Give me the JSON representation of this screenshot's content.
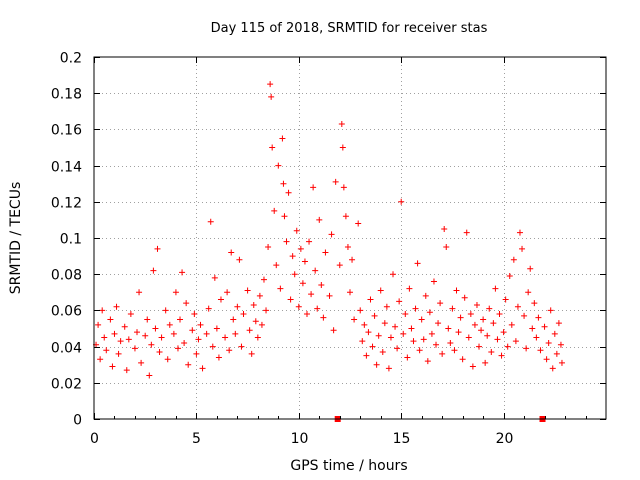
{
  "chart_data": {
    "type": "scatter",
    "title": "Day 115 of 2018, SRMTID for receiver stas",
    "xlabel": "GPS time / hours",
    "ylabel": "SRMTID / TECUs",
    "xlim": [
      0,
      25
    ],
    "ylim": [
      0,
      0.2
    ],
    "x_ticks": [
      0,
      5,
      10,
      15,
      20
    ],
    "x_tick_labels": [
      "0",
      "5",
      "10",
      "15",
      "20"
    ],
    "y_ticks": [
      0,
      0.02,
      0.04,
      0.06,
      0.08,
      0.1,
      0.12,
      0.14,
      0.16,
      0.18,
      0.2
    ],
    "y_tick_labels": [
      "0",
      "0.02",
      "0.04",
      "0.06",
      "0.08",
      "0.1",
      "0.12",
      "0.14",
      "0.16",
      "0.18",
      "0.2"
    ],
    "grid": true,
    "marker": "+",
    "color": "#ff0000",
    "zero_markers": [
      {
        "x": 11.9,
        "y": 0
      },
      {
        "x": 21.9,
        "y": 0
      }
    ],
    "series": [
      {
        "name": "SRMTID",
        "points": [
          [
            0.1,
            0.041
          ],
          [
            0.2,
            0.052
          ],
          [
            0.3,
            0.033
          ],
          [
            0.4,
            0.06
          ],
          [
            0.5,
            0.045
          ],
          [
            0.6,
            0.038
          ],
          [
            0.8,
            0.055
          ],
          [
            0.9,
            0.029
          ],
          [
            1.0,
            0.047
          ],
          [
            1.1,
            0.062
          ],
          [
            1.2,
            0.036
          ],
          [
            1.3,
            0.043
          ],
          [
            1.5,
            0.051
          ],
          [
            1.6,
            0.027
          ],
          [
            1.7,
            0.044
          ],
          [
            1.8,
            0.058
          ],
          [
            2.0,
            0.039
          ],
          [
            2.1,
            0.048
          ],
          [
            2.2,
            0.07
          ],
          [
            2.3,
            0.031
          ],
          [
            2.5,
            0.046
          ],
          [
            2.6,
            0.055
          ],
          [
            2.7,
            0.024
          ],
          [
            2.8,
            0.041
          ],
          [
            2.9,
            0.082
          ],
          [
            3.0,
            0.05
          ],
          [
            3.1,
            0.094
          ],
          [
            3.2,
            0.037
          ],
          [
            3.3,
            0.045
          ],
          [
            3.5,
            0.06
          ],
          [
            3.6,
            0.033
          ],
          [
            3.7,
            0.052
          ],
          [
            3.9,
            0.047
          ],
          [
            4.0,
            0.07
          ],
          [
            4.1,
            0.039
          ],
          [
            4.2,
            0.055
          ],
          [
            4.3,
            0.081
          ],
          [
            4.4,
            0.042
          ],
          [
            4.5,
            0.064
          ],
          [
            4.6,
            0.03
          ],
          [
            4.8,
            0.049
          ],
          [
            4.9,
            0.058
          ],
          [
            5.0,
            0.036
          ],
          [
            5.1,
            0.044
          ],
          [
            5.2,
            0.052
          ],
          [
            5.3,
            0.028
          ],
          [
            5.5,
            0.047
          ],
          [
            5.6,
            0.061
          ],
          [
            5.7,
            0.109
          ],
          [
            5.8,
            0.04
          ],
          [
            5.9,
            0.078
          ],
          [
            6.0,
            0.05
          ],
          [
            6.1,
            0.034
          ],
          [
            6.2,
            0.066
          ],
          [
            6.4,
            0.045
          ],
          [
            6.5,
            0.07
          ],
          [
            6.6,
            0.038
          ],
          [
            6.7,
            0.092
          ],
          [
            6.8,
            0.055
          ],
          [
            6.9,
            0.047
          ],
          [
            7.0,
            0.062
          ],
          [
            7.1,
            0.088
          ],
          [
            7.2,
            0.04
          ],
          [
            7.3,
            0.058
          ],
          [
            7.5,
            0.071
          ],
          [
            7.6,
            0.049
          ],
          [
            7.7,
            0.036
          ],
          [
            7.8,
            0.063
          ],
          [
            7.9,
            0.054
          ],
          [
            8.0,
            0.045
          ],
          [
            8.1,
            0.068
          ],
          [
            8.2,
            0.052
          ],
          [
            8.3,
            0.077
          ],
          [
            8.4,
            0.06
          ],
          [
            8.5,
            0.095
          ],
          [
            8.6,
            0.185
          ],
          [
            8.65,
            0.178
          ],
          [
            8.7,
            0.15
          ],
          [
            8.8,
            0.115
          ],
          [
            8.9,
            0.085
          ],
          [
            9.0,
            0.14
          ],
          [
            9.1,
            0.072
          ],
          [
            9.2,
            0.155
          ],
          [
            9.25,
            0.13
          ],
          [
            9.3,
            0.112
          ],
          [
            9.4,
            0.098
          ],
          [
            9.5,
            0.125
          ],
          [
            9.6,
            0.066
          ],
          [
            9.7,
            0.09
          ],
          [
            9.8,
            0.08
          ],
          [
            9.9,
            0.104
          ],
          [
            10.0,
            0.062
          ],
          [
            10.1,
            0.094
          ],
          [
            10.2,
            0.075
          ],
          [
            10.3,
            0.087
          ],
          [
            10.4,
            0.058
          ],
          [
            10.5,
            0.098
          ],
          [
            10.6,
            0.069
          ],
          [
            10.7,
            0.128
          ],
          [
            10.8,
            0.082
          ],
          [
            10.9,
            0.061
          ],
          [
            11.0,
            0.11
          ],
          [
            11.1,
            0.074
          ],
          [
            11.2,
            0.056
          ],
          [
            11.3,
            0.092
          ],
          [
            11.5,
            0.068
          ],
          [
            11.6,
            0.102
          ],
          [
            11.7,
            0.049
          ],
          [
            11.8,
            0.131
          ],
          [
            12.0,
            0.085
          ],
          [
            12.1,
            0.163
          ],
          [
            12.15,
            0.15
          ],
          [
            12.2,
            0.128
          ],
          [
            12.3,
            0.112
          ],
          [
            12.4,
            0.095
          ],
          [
            12.5,
            0.07
          ],
          [
            12.6,
            0.088
          ],
          [
            12.7,
            0.055
          ],
          [
            12.9,
            0.108
          ],
          [
            13.0,
            0.06
          ],
          [
            13.1,
            0.043
          ],
          [
            13.2,
            0.052
          ],
          [
            13.3,
            0.035
          ],
          [
            13.4,
            0.048
          ],
          [
            13.5,
            0.066
          ],
          [
            13.6,
            0.04
          ],
          [
            13.7,
            0.057
          ],
          [
            13.8,
            0.03
          ],
          [
            13.9,
            0.046
          ],
          [
            14.0,
            0.071
          ],
          [
            14.1,
            0.037
          ],
          [
            14.2,
            0.053
          ],
          [
            14.3,
            0.062
          ],
          [
            14.4,
            0.028
          ],
          [
            14.5,
            0.045
          ],
          [
            14.6,
            0.08
          ],
          [
            14.7,
            0.051
          ],
          [
            14.8,
            0.039
          ],
          [
            14.9,
            0.065
          ],
          [
            15.0,
            0.12
          ],
          [
            15.1,
            0.047
          ],
          [
            15.2,
            0.058
          ],
          [
            15.3,
            0.034
          ],
          [
            15.4,
            0.072
          ],
          [
            15.5,
            0.05
          ],
          [
            15.6,
            0.043
          ],
          [
            15.7,
            0.061
          ],
          [
            15.8,
            0.086
          ],
          [
            15.9,
            0.038
          ],
          [
            16.0,
            0.055
          ],
          [
            16.1,
            0.044
          ],
          [
            16.2,
            0.068
          ],
          [
            16.3,
            0.032
          ],
          [
            16.4,
            0.059
          ],
          [
            16.5,
            0.047
          ],
          [
            16.6,
            0.076
          ],
          [
            16.7,
            0.041
          ],
          [
            16.8,
            0.053
          ],
          [
            16.9,
            0.064
          ],
          [
            17.0,
            0.036
          ],
          [
            17.1,
            0.105
          ],
          [
            17.2,
            0.095
          ],
          [
            17.3,
            0.05
          ],
          [
            17.4,
            0.042
          ],
          [
            17.5,
            0.061
          ],
          [
            17.6,
            0.038
          ],
          [
            17.7,
            0.071
          ],
          [
            17.8,
            0.048
          ],
          [
            17.9,
            0.056
          ],
          [
            18.0,
            0.033
          ],
          [
            18.1,
            0.067
          ],
          [
            18.2,
            0.103
          ],
          [
            18.3,
            0.045
          ],
          [
            18.4,
            0.058
          ],
          [
            18.5,
            0.029
          ],
          [
            18.6,
            0.052
          ],
          [
            18.7,
            0.063
          ],
          [
            18.8,
            0.04
          ],
          [
            18.9,
            0.049
          ],
          [
            19.0,
            0.055
          ],
          [
            19.1,
            0.031
          ],
          [
            19.2,
            0.046
          ],
          [
            19.3,
            0.061
          ],
          [
            19.4,
            0.037
          ],
          [
            19.5,
            0.053
          ],
          [
            19.6,
            0.072
          ],
          [
            19.7,
            0.044
          ],
          [
            19.8,
            0.058
          ],
          [
            19.9,
            0.035
          ],
          [
            20.0,
            0.048
          ],
          [
            20.1,
            0.066
          ],
          [
            20.2,
            0.04
          ],
          [
            20.3,
            0.079
          ],
          [
            20.4,
            0.052
          ],
          [
            20.5,
            0.088
          ],
          [
            20.6,
            0.043
          ],
          [
            20.7,
            0.062
          ],
          [
            20.8,
            0.103
          ],
          [
            20.9,
            0.094
          ],
          [
            21.0,
            0.057
          ],
          [
            21.1,
            0.039
          ],
          [
            21.2,
            0.07
          ],
          [
            21.3,
            0.083
          ],
          [
            21.4,
            0.05
          ],
          [
            21.5,
            0.064
          ],
          [
            21.6,
            0.045
          ],
          [
            21.7,
            0.056
          ],
          [
            21.8,
            0.038
          ],
          [
            22.0,
            0.051
          ],
          [
            22.1,
            0.033
          ],
          [
            22.2,
            0.042
          ],
          [
            22.3,
            0.06
          ],
          [
            22.4,
            0.028
          ],
          [
            22.5,
            0.047
          ],
          [
            22.6,
            0.036
          ],
          [
            22.7,
            0.053
          ],
          [
            22.8,
            0.041
          ],
          [
            22.85,
            0.031
          ]
        ]
      }
    ]
  }
}
